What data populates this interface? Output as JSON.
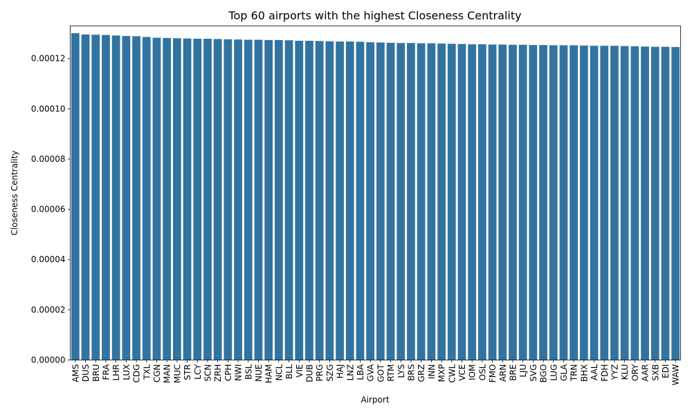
{
  "chart_data": {
    "type": "bar",
    "title": "Top 60 airports with the highest Closeness Centrality",
    "xlabel": "Airport",
    "ylabel": "Closeness Centrality",
    "ylim": [
      0,
      0.000133
    ],
    "yticks": [
      "0.00000",
      "0.00002",
      "0.00004",
      "0.00006",
      "0.00008",
      "0.00010",
      "0.00012"
    ],
    "ytick_values": [
      0,
      2e-05,
      4e-05,
      6e-05,
      8e-05,
      0.0001,
      0.00012
    ],
    "grid": false,
    "bar_color": "#3274a1",
    "categories": [
      "AMS",
      "DUS",
      "BRU",
      "FRA",
      "LHR",
      "LUX",
      "CDG",
      "TXL",
      "CGN",
      "MAN",
      "MUC",
      "STR",
      "LCY",
      "SCN",
      "ZRH",
      "CPH",
      "NWI",
      "BSL",
      "NUE",
      "HAM",
      "NCL",
      "BLL",
      "VIE",
      "DUB",
      "PRG",
      "SZG",
      "HAJ",
      "LNZ",
      "LBA",
      "GVA",
      "GOT",
      "RTM",
      "LYS",
      "BRS",
      "GRZ",
      "INN",
      "MXP",
      "CWL",
      "VCE",
      "IOM",
      "OSL",
      "FMO",
      "ARN",
      "BRE",
      "LJU",
      "SVG",
      "BGO",
      "LUG",
      "GLA",
      "TRN",
      "BHX",
      "AAL",
      "FDH",
      "YYZ",
      "KLU",
      "ORY",
      "AAR",
      "SXB",
      "EDI",
      "WAW"
    ],
    "values": [
      0.0001301,
      0.0001296,
      0.0001295,
      0.0001294,
      0.0001292,
      0.000129,
      0.0001289,
      0.0001286,
      0.0001283,
      0.0001282,
      0.0001281,
      0.000128,
      0.0001279,
      0.0001279,
      0.0001278,
      0.0001277,
      0.0001276,
      0.0001275,
      0.0001275,
      0.0001274,
      0.0001274,
      0.0001273,
      0.0001271,
      0.0001271,
      0.000127,
      0.0001269,
      0.0001268,
      0.0001268,
      0.0001267,
      0.0001265,
      0.0001264,
      0.0001263,
      0.0001262,
      0.0001262,
      0.0001261,
      0.0001261,
      0.000126,
      0.0001259,
      0.0001258,
      0.0001257,
      0.0001257,
      0.0001256,
      0.0001256,
      0.0001255,
      0.0001255,
      0.0001254,
      0.0001254,
      0.0001253,
      0.0001253,
      0.0001253,
      0.0001252,
      0.0001251,
      0.0001251,
      0.0001251,
      0.000125,
      0.0001249,
      0.0001248,
      0.0001247,
      0.0001247,
      0.0001246
    ]
  }
}
